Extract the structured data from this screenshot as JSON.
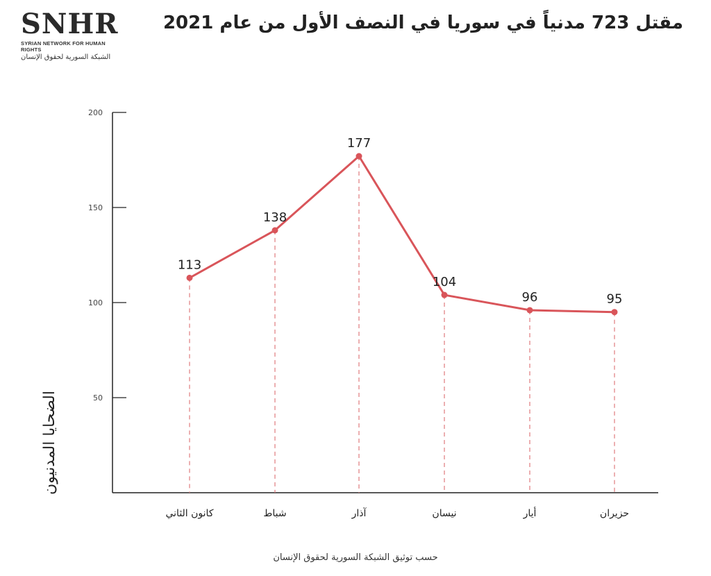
{
  "header": {
    "title": "مقتل 723 مدنياً في سوريا في النصف الأول من عام 2021",
    "logo": {
      "main": "SNHR",
      "english": "SYRIAN NETWORK FOR HUMAN RIGHTS",
      "arabic": "الشبكة السورية لحقوق الإنسان"
    }
  },
  "footer": {
    "source": "حسب توثيق الشبكة السورية لحقوق الإنسان"
  },
  "chart_data": {
    "type": "line",
    "categories": [
      "كانون الثاني",
      "شباط",
      "آذار",
      "نيسان",
      "أيار",
      "حزيران"
    ],
    "values": [
      113,
      138,
      177,
      104,
      96,
      95
    ],
    "ylabel": "الضحايا المدنيون",
    "xlabel": "",
    "ylim": [
      0,
      200
    ],
    "yticks": [
      50,
      100,
      150,
      200
    ],
    "grid": false,
    "data_labels": true,
    "colors": {
      "line": "#d9555a",
      "axis": "#222222",
      "drop_line": "#e07a7d"
    }
  }
}
